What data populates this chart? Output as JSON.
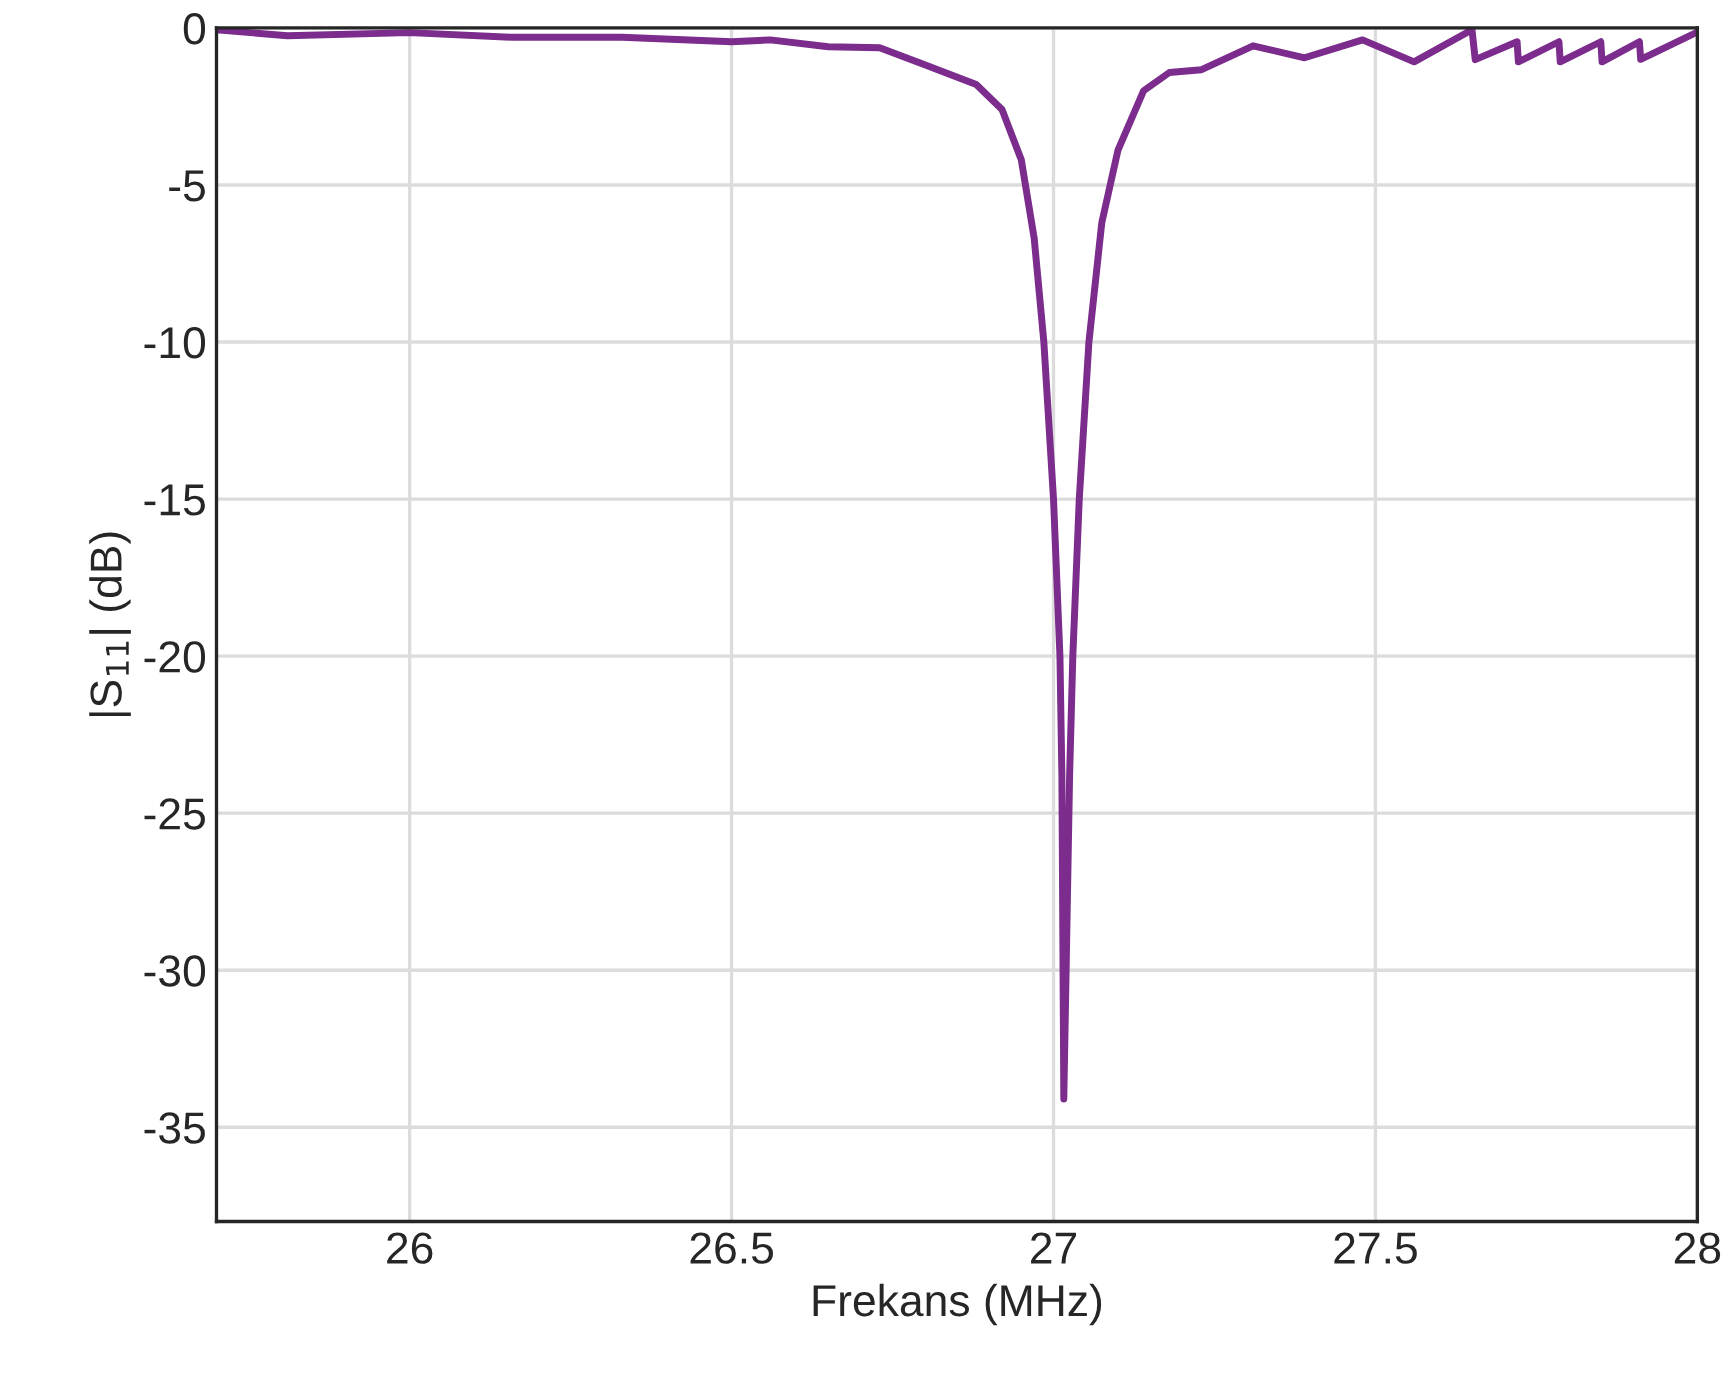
{
  "chart_data": {
    "type": "line",
    "xlabel": "Frekans (MHz)",
    "ylabel": "|S$_{11}$| (dB)",
    "xlim": [
      25.7,
      28
    ],
    "ylim": [
      -38,
      0
    ],
    "xticks": [
      26,
      26.5,
      27,
      27.5,
      28
    ],
    "yticks": [
      -35,
      -30,
      -25,
      -20,
      -15,
      -10,
      -5,
      0
    ],
    "grid": true,
    "series": [
      {
        "color": "#7b2c8c",
        "x": [
          25.7,
          25.81,
          26.0,
          26.16,
          26.33,
          26.5,
          26.56,
          26.65,
          26.73,
          26.8,
          26.88,
          26.92,
          26.95,
          26.97,
          26.985,
          27.0,
          27.01,
          27.013,
          27.016,
          27.025,
          27.03,
          27.04,
          27.055,
          27.075,
          27.1,
          27.14,
          27.18,
          27.23,
          27.31,
          27.39,
          27.48,
          27.56,
          27.65,
          27.655,
          27.72,
          27.722,
          27.785,
          27.787,
          27.85,
          27.852,
          27.91,
          27.912,
          28.0
        ],
        "values": [
          -0.06,
          -0.25,
          -0.15,
          -0.3,
          -0.3,
          -0.44,
          -0.38,
          -0.6,
          -0.63,
          -1.17,
          -1.8,
          -2.6,
          -4.2,
          -6.7,
          -10,
          -15,
          -20,
          -23.8,
          -34.1,
          -23.8,
          -20,
          -15,
          -10,
          -6.2,
          -3.9,
          -2.0,
          -1.42,
          -1.33,
          -0.57,
          -0.95,
          -0.38,
          -1.08,
          -0.06,
          -1.01,
          -0.44,
          -1.08,
          -0.44,
          -1.08,
          -0.44,
          -1.08,
          -0.44,
          -1.0,
          -0.13
        ]
      }
    ]
  }
}
